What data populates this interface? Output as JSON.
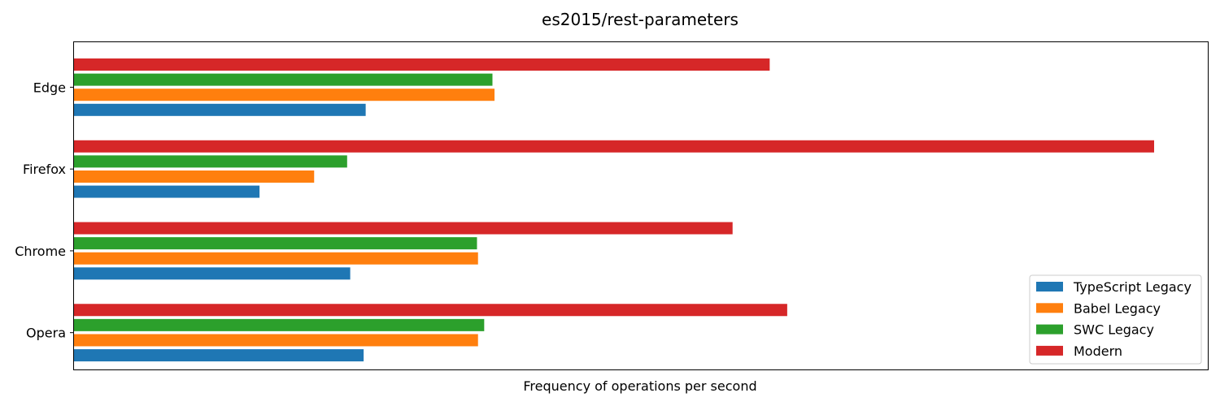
{
  "chart_data": {
    "type": "bar",
    "orientation": "horizontal",
    "title": "es2015/rest-parameters",
    "xlabel": "Frequency of operations per second",
    "ylabel": "",
    "x_ticks_visible": false,
    "grid": false,
    "legend_position": "lower-right",
    "xlim": [
      0,
      1048
    ],
    "categories": [
      "Edge",
      "Firefox",
      "Chrome",
      "Opera"
    ],
    "series": [
      {
        "name": "TypeScript Legacy",
        "color": "#1f77b4",
        "values": [
          283,
          180,
          268,
          281
        ]
      },
      {
        "name": "Babel Legacy",
        "color": "#ff7f0e",
        "values": [
          408,
          233,
          392,
          392
        ]
      },
      {
        "name": "SWC Legacy",
        "color": "#2ca02c",
        "values": [
          406,
          265,
          391,
          398
        ]
      },
      {
        "name": "Modern",
        "color": "#d62728",
        "values": [
          675,
          1048,
          639,
          692
        ]
      }
    ]
  }
}
